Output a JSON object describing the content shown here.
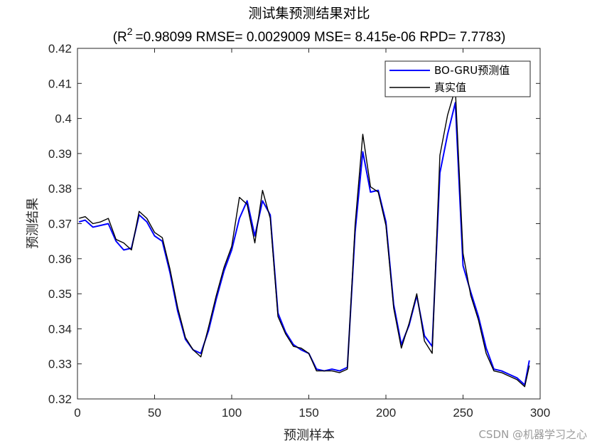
{
  "chart_data": {
    "type": "line",
    "title": "测试集预测结果对比",
    "subtitle": "(R =0.98099 RMSE= 0.0029009 MSE= 8.415e-06 RPD= 7.7783)",
    "subtitle_parts": {
      "r_symbol": "R",
      "r_superscript": "2",
      "rest": "=0.98099 RMSE= 0.0029009 MSE= 8.415e-06 RPD= 7.7783)"
    },
    "xlabel": "预测样本",
    "ylabel": "预测结果",
    "xlim": [
      0,
      300
    ],
    "ylim": [
      0.32,
      0.42
    ],
    "xticks": [
      0,
      50,
      100,
      150,
      200,
      250,
      300
    ],
    "xtick_labels": [
      "0",
      "50",
      "100",
      "150",
      "200",
      "250",
      "300"
    ],
    "yticks": [
      0.32,
      0.33,
      0.34,
      0.35,
      0.36,
      0.37,
      0.38,
      0.39,
      0.4,
      0.41,
      0.42
    ],
    "ytick_labels": [
      "0.32",
      "0.33",
      "0.34",
      "0.35",
      "0.36",
      "0.37",
      "0.38",
      "0.39",
      "0.4",
      "0.41",
      "0.42"
    ],
    "grid": false,
    "legend_position": "top-right",
    "series": [
      {
        "name": "BO-GRU预测值",
        "color": "#0000ff",
        "x": [
          1,
          5,
          10,
          15,
          20,
          25,
          30,
          35,
          40,
          45,
          50,
          55,
          60,
          65,
          70,
          75,
          80,
          85,
          90,
          95,
          100,
          105,
          110,
          115,
          120,
          125,
          130,
          135,
          140,
          145,
          150,
          155,
          160,
          165,
          170,
          175,
          180,
          185,
          190,
          195,
          200,
          205,
          210,
          215,
          220,
          225,
          230,
          235,
          240,
          245,
          250,
          255,
          260,
          265,
          270,
          275,
          280,
          285,
          290,
          293
        ],
        "values": [
          0.3705,
          0.371,
          0.369,
          0.3695,
          0.37,
          0.365,
          0.3625,
          0.363,
          0.3725,
          0.3705,
          0.3665,
          0.365,
          0.356,
          0.345,
          0.337,
          0.334,
          0.333,
          0.3395,
          0.3485,
          0.3565,
          0.3625,
          0.3715,
          0.3765,
          0.3665,
          0.3765,
          0.3725,
          0.3445,
          0.339,
          0.3355,
          0.334,
          0.333,
          0.3285,
          0.328,
          0.3285,
          0.328,
          0.329,
          0.3675,
          0.3905,
          0.379,
          0.3795,
          0.3705,
          0.347,
          0.3355,
          0.341,
          0.3495,
          0.338,
          0.335,
          0.3845,
          0.3955,
          0.4045,
          0.358,
          0.3505,
          0.3435,
          0.3345,
          0.3285,
          0.328,
          0.327,
          0.326,
          0.324,
          0.331
        ]
      },
      {
        "name": "真实值",
        "color": "#000000",
        "x": [
          1,
          5,
          10,
          15,
          20,
          25,
          30,
          35,
          40,
          45,
          50,
          55,
          60,
          65,
          70,
          75,
          80,
          85,
          90,
          95,
          100,
          105,
          110,
          115,
          120,
          125,
          130,
          135,
          140,
          145,
          150,
          155,
          160,
          165,
          170,
          175,
          180,
          185,
          190,
          195,
          200,
          205,
          210,
          215,
          220,
          225,
          230,
          235,
          240,
          245,
          250,
          255,
          260,
          265,
          270,
          275,
          280,
          285,
          290,
          293
        ],
        "values": [
          0.3715,
          0.372,
          0.37,
          0.3705,
          0.3715,
          0.3655,
          0.3645,
          0.3625,
          0.3735,
          0.3715,
          0.3675,
          0.366,
          0.357,
          0.346,
          0.3375,
          0.334,
          0.332,
          0.3405,
          0.3495,
          0.3575,
          0.3635,
          0.3775,
          0.3755,
          0.3645,
          0.3795,
          0.3715,
          0.3435,
          0.3385,
          0.335,
          0.3345,
          0.333,
          0.328,
          0.328,
          0.328,
          0.3275,
          0.3285,
          0.3695,
          0.3955,
          0.3805,
          0.379,
          0.3695,
          0.346,
          0.3345,
          0.3415,
          0.35,
          0.3365,
          0.333,
          0.3895,
          0.401,
          0.4085,
          0.3615,
          0.3495,
          0.3425,
          0.333,
          0.328,
          0.3275,
          0.3265,
          0.3255,
          0.3235,
          0.3295
        ]
      }
    ]
  },
  "watermark": "CSDN @机器学习之心"
}
